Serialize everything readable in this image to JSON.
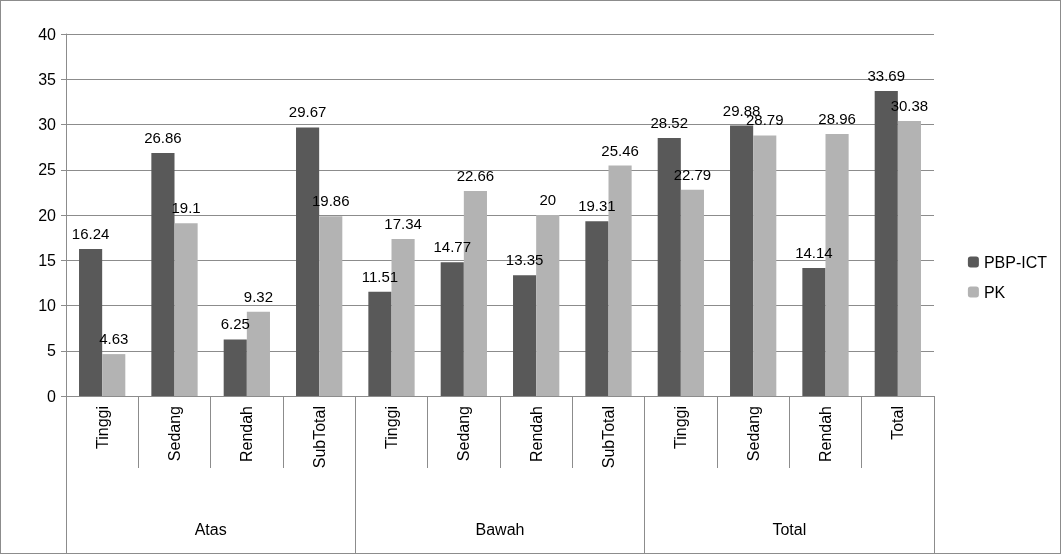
{
  "chart_data": {
    "type": "bar",
    "categories": [
      "Tinggi",
      "Sedang",
      "Rendah",
      "SubTotal",
      "Tinggi",
      "Sedang",
      "Rendah",
      "SubTotal",
      "Tinggi",
      "Sedang",
      "Rendah",
      "Total"
    ],
    "annotations": [
      "Atas",
      "Bawah",
      "Total"
    ],
    "series": [
      {
        "name": "PBP-ICT",
        "color": "#595959",
        "values": [
          16.24,
          26.86,
          6.25,
          29.67,
          11.51,
          14.77,
          13.35,
          19.31,
          28.52,
          29.88,
          14.14,
          33.69
        ]
      },
      {
        "name": "PK",
        "color": "#b3b3b3",
        "values": [
          4.63,
          19.1,
          9.32,
          19.86,
          17.34,
          22.66,
          20,
          25.46,
          22.79,
          28.79,
          28.96,
          30.38
        ]
      }
    ],
    "ylim": [
      0,
      40
    ],
    "yticks": [
      0,
      5,
      10,
      15,
      20,
      25,
      30,
      35,
      40
    ],
    "grid": "y",
    "legend": "right",
    "data_labels": true
  }
}
